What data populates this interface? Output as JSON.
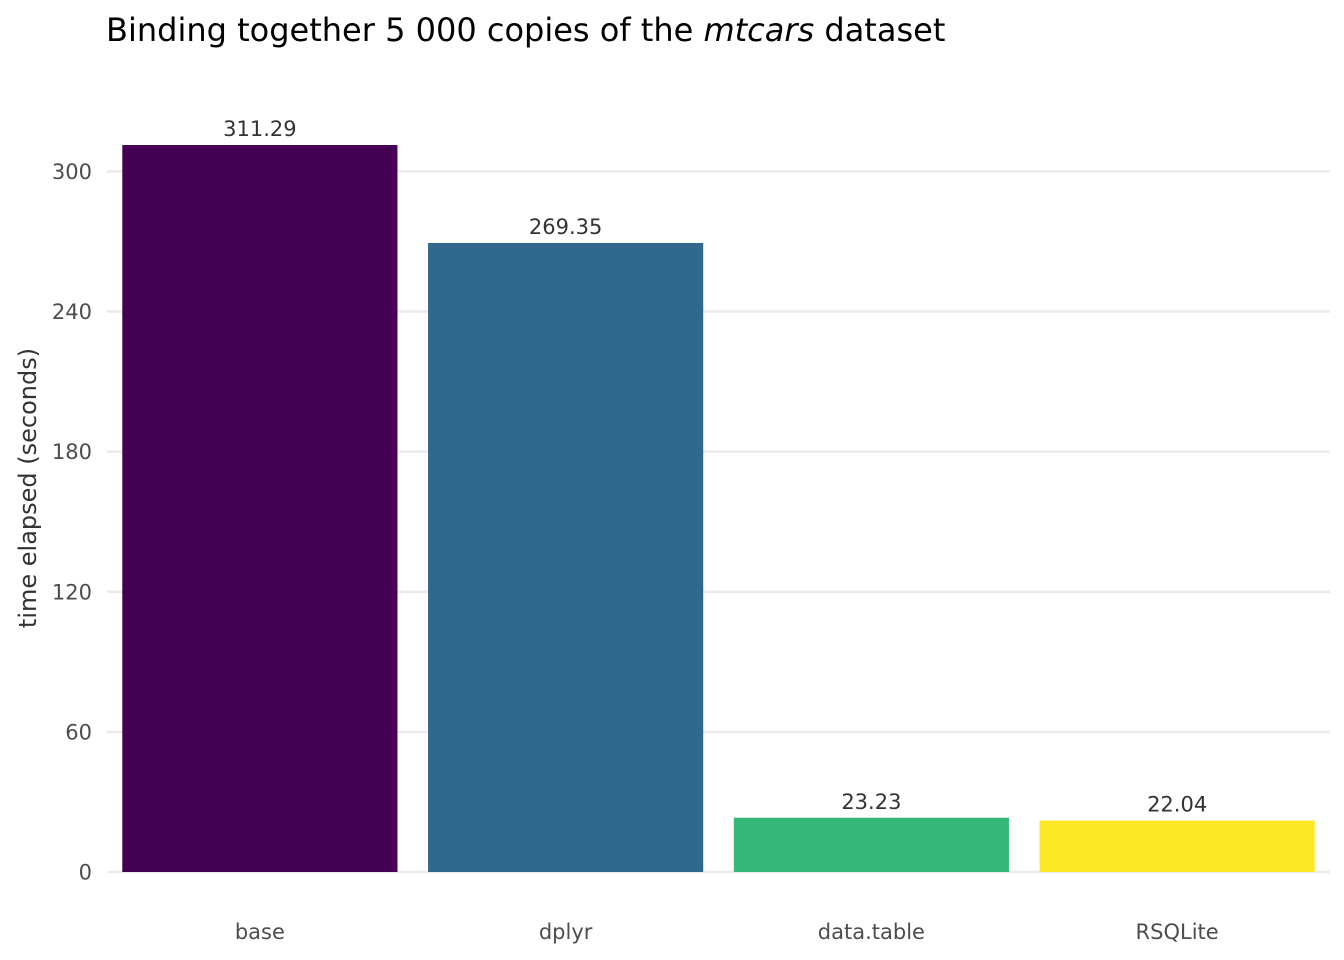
{
  "chart_data": {
    "type": "bar",
    "title": {
      "before": "Binding together 5 000 copies of the ",
      "emphasis": "mtcars",
      "after": " dataset"
    },
    "xlabel": "",
    "ylabel": "time elapsed (seconds)",
    "categories": [
      "base",
      "dplyr",
      "data.table",
      "RSQLite"
    ],
    "values": [
      311.29,
      269.35,
      23.23,
      22.04
    ],
    "data_labels": [
      "311.29",
      "269.35",
      "23.23",
      "22.04"
    ],
    "colors": [
      "#440154",
      "#31688e",
      "#35b779",
      "#fde725"
    ],
    "ylim": [
      0,
      320
    ],
    "yticks": [
      0,
      60,
      120,
      180,
      240,
      300
    ],
    "grid": true,
    "legend": "none"
  }
}
